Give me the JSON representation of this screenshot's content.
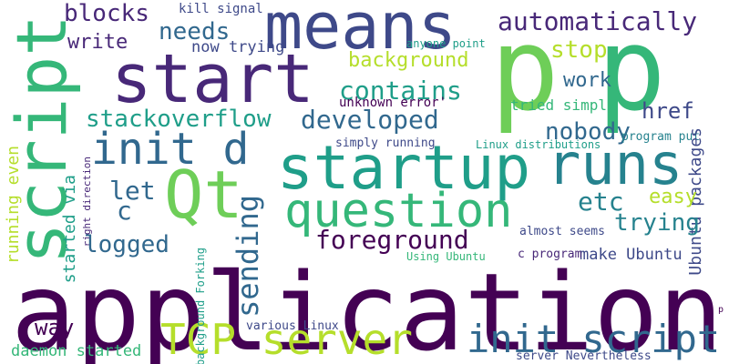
{
  "palette": {
    "dark_purple": "#440154",
    "purple": "#482878",
    "indigo": "#3e4989",
    "slate_blue": "#31688e",
    "teal_blue": "#26828e",
    "teal": "#1f9e89",
    "green_teal": "#35b779",
    "green": "#6ece58",
    "yellow_green": "#b5de2b",
    "yellow": "#fde725"
  },
  "words": [
    {
      "id": "application",
      "text": "application",
      "color": "#440154"
    },
    {
      "id": "startup",
      "text": "startup",
      "color": "#1f9e89"
    },
    {
      "id": "means",
      "text": "means",
      "color": "#3e4989"
    },
    {
      "id": "p-1",
      "text": "p",
      "color": "#6ece58"
    },
    {
      "id": "p-2",
      "text": "p",
      "color": "#35b779"
    },
    {
      "id": "start",
      "text": "start",
      "color": "#482878"
    },
    {
      "id": "script",
      "text": "script",
      "color": "#35b779"
    },
    {
      "id": "runs",
      "text": "runs",
      "color": "#26828e"
    },
    {
      "id": "qt",
      "text": "Qt",
      "color": "#6ece58"
    },
    {
      "id": "question",
      "text": "question",
      "color": "#35b779"
    },
    {
      "id": "init-d",
      "text": "init d",
      "color": "#31688e"
    },
    {
      "id": "tcp-server",
      "text": "TCP server",
      "color": "#b5de2b"
    },
    {
      "id": "init-script",
      "text": "init script",
      "color": "#31688e"
    },
    {
      "id": "automatically",
      "text": "automatically",
      "color": "#482878"
    },
    {
      "id": "blocks",
      "text": "blocks",
      "color": "#482878"
    },
    {
      "id": "needs",
      "text": "needs",
      "color": "#31688e"
    },
    {
      "id": "write",
      "text": "write",
      "color": "#482878"
    },
    {
      "id": "kill-signal",
      "text": "kill signal",
      "color": "#3e4989"
    },
    {
      "id": "now-trying",
      "text": "now trying",
      "color": "#3e4989"
    },
    {
      "id": "stop",
      "text": "stop",
      "color": "#b5de2b"
    },
    {
      "id": "anyone-point",
      "text": "anyone point",
      "color": "#1f9e89"
    },
    {
      "id": "background",
      "text": "background",
      "color": "#b5de2b"
    },
    {
      "id": "contains",
      "text": "contains",
      "color": "#1f9e89"
    },
    {
      "id": "work",
      "text": "work",
      "color": "#31688e"
    },
    {
      "id": "unknown-error",
      "text": "unknown error'",
      "color": "#440154"
    },
    {
      "id": "tried-simply",
      "text": "tried simply",
      "color": "#35b779"
    },
    {
      "id": "href",
      "text": "href",
      "color": "#3e4989"
    },
    {
      "id": "stackoverflow",
      "text": "stackoverflow",
      "color": "#1f9e89"
    },
    {
      "id": "developed",
      "text": "developed",
      "color": "#31688e"
    },
    {
      "id": "nobody",
      "text": "nobody",
      "color": "#31688e"
    },
    {
      "id": "program-put",
      "text": "program put",
      "color": "#26828e"
    },
    {
      "id": "simply-running",
      "text": "simply running",
      "color": "#3e4989"
    },
    {
      "id": "linux-distributions",
      "text": "Linux distributions",
      "color": "#1f9e89"
    },
    {
      "id": "ubuntu-packages",
      "text": "Ubuntu packages",
      "color": "#3e4989"
    },
    {
      "id": "running-even",
      "text": "running even",
      "color": "#b5de2b"
    },
    {
      "id": "started-via",
      "text": "started via",
      "color": "#1f9e89"
    },
    {
      "id": "right-direction",
      "text": "right direction",
      "color": "#482878"
    },
    {
      "id": "let",
      "text": "let",
      "color": "#31688e"
    },
    {
      "id": "c-1",
      "text": "c",
      "color": "#31688e"
    },
    {
      "id": "sending",
      "text": "sending",
      "color": "#31688e"
    },
    {
      "id": "etc",
      "text": "etc",
      "color": "#26828e"
    },
    {
      "id": "easy",
      "text": "easy",
      "color": "#b5de2b"
    },
    {
      "id": "trying",
      "text": "trying",
      "color": "#26828e"
    },
    {
      "id": "logged",
      "text": "logged",
      "color": "#31688e"
    },
    {
      "id": "foreground",
      "text": "foreground",
      "color": "#440154"
    },
    {
      "id": "almost-seems",
      "text": "almost seems",
      "color": "#3e4989"
    },
    {
      "id": "background-forking",
      "text": "background Forking",
      "color": "#1f9e89"
    },
    {
      "id": "make-ubuntu",
      "text": "make Ubuntu",
      "color": "#3e4989"
    },
    {
      "id": "using-ubuntu",
      "text": "Using Ubuntu",
      "color": "#35b779"
    },
    {
      "id": "c-program",
      "text": "c program",
      "color": "#482878"
    },
    {
      "id": "way",
      "text": "way",
      "color": "#440154"
    },
    {
      "id": "various-linux",
      "text": "various Linux",
      "color": "#3e4989"
    },
    {
      "id": "daemon-started",
      "text": "daemon started",
      "color": "#35b779"
    },
    {
      "id": "server-nevertheless",
      "text": "server Nevertheless",
      "color": "#3e4989"
    },
    {
      "id": "p-small",
      "text": "p",
      "color": "#440154"
    }
  ]
}
